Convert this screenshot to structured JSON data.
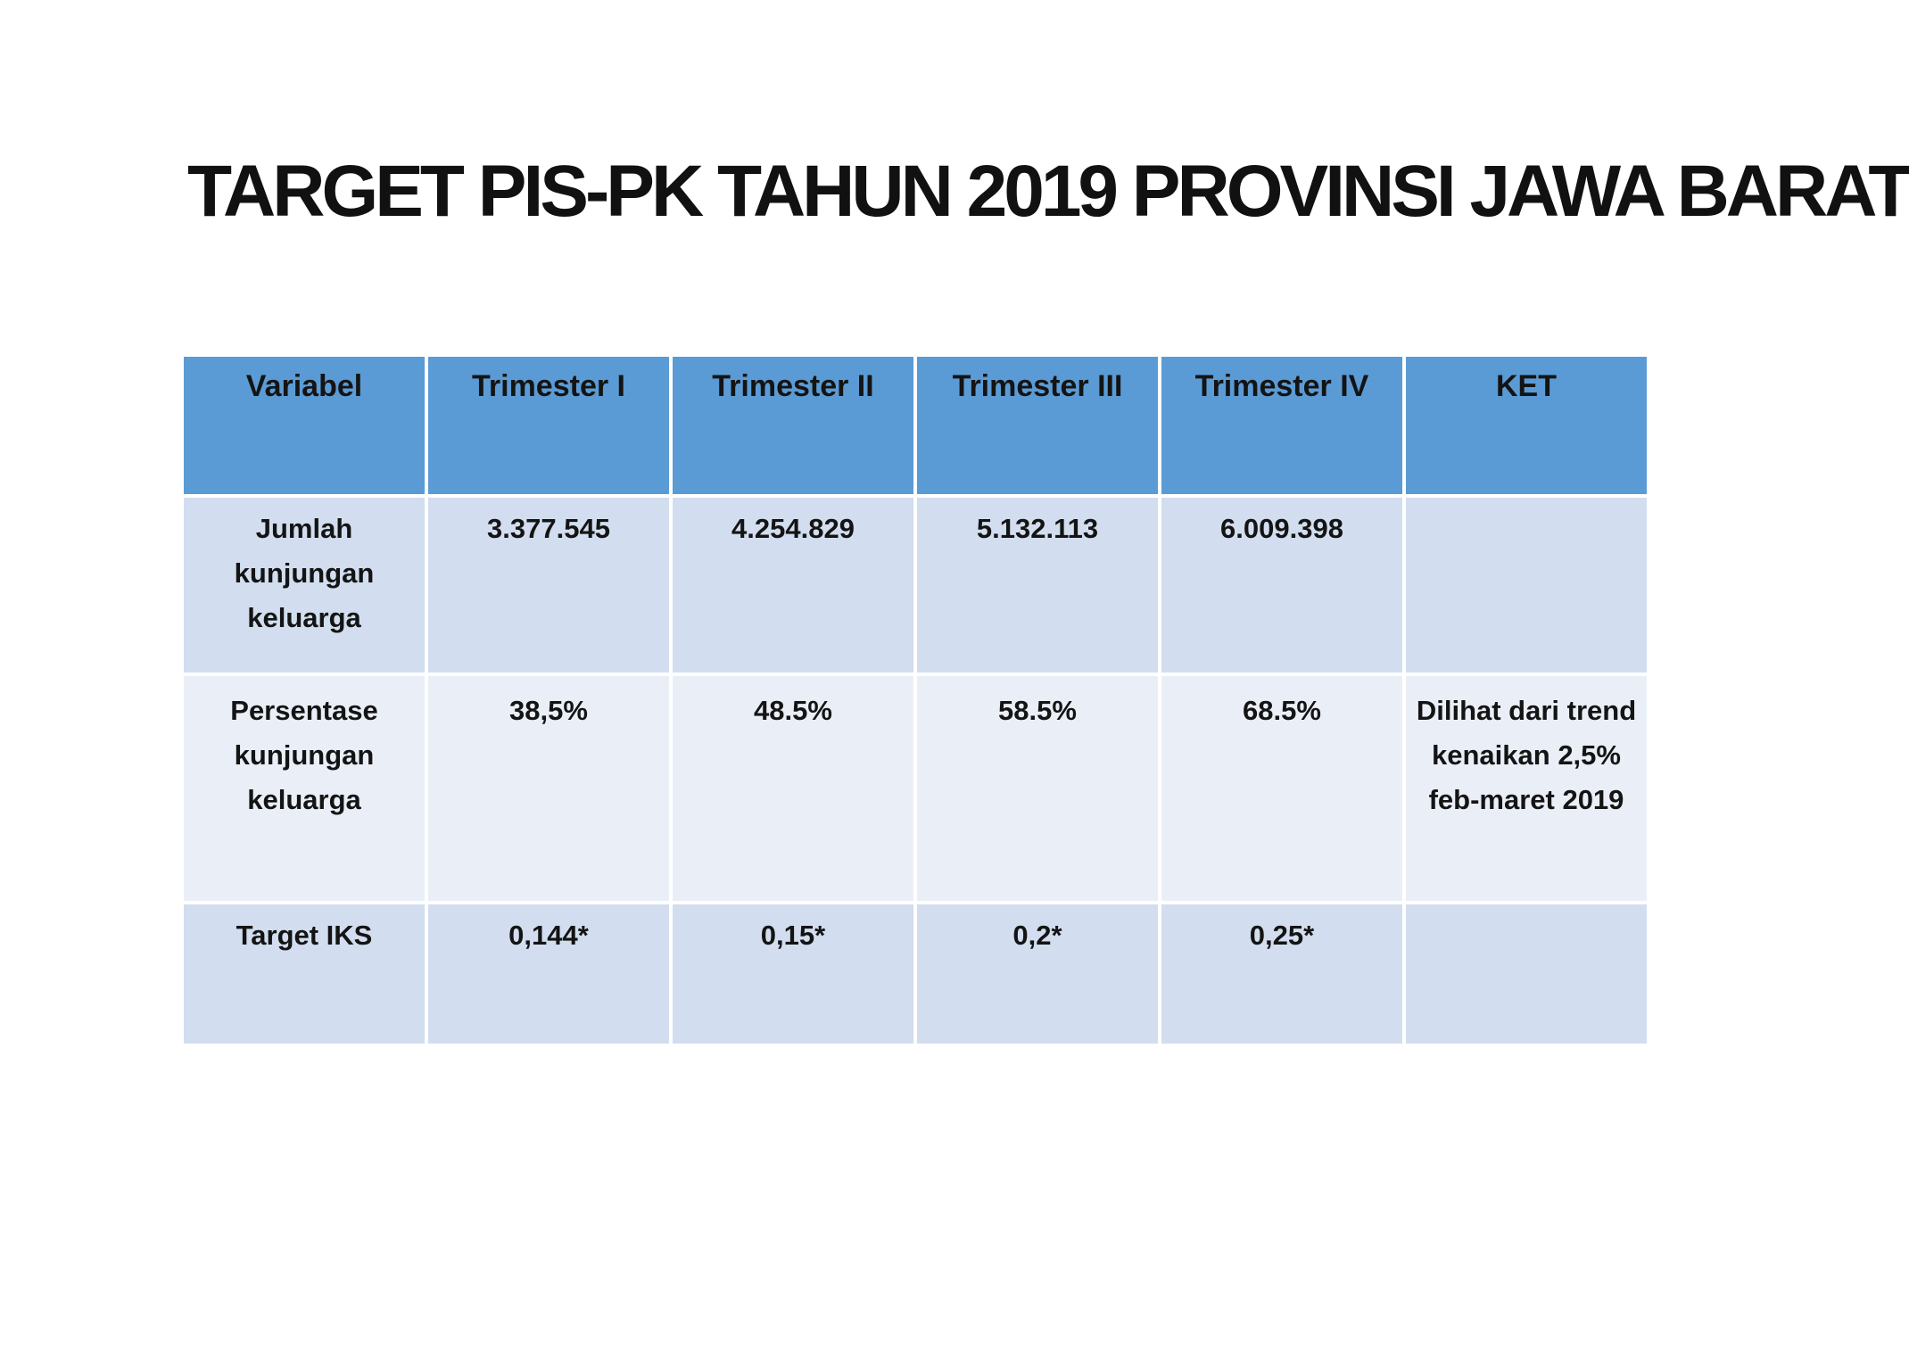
{
  "title": "TARGET PIS-PK TAHUN 2019 PROVINSI JAWA BARAT",
  "table": {
    "headers": [
      "Variabel",
      "Trimester I",
      "Trimester II",
      "Trimester III",
      "Trimester IV",
      "KET"
    ],
    "rows": [
      [
        "Jumlah kunjungan keluarga",
        "3.377.545",
        "4.254.829",
        "5.132.113",
        "6.009.398",
        ""
      ],
      [
        "Persentase kunjungan keluarga",
        "38,5%",
        "48.5%",
        "58.5%",
        "68.5%",
        "Dilihat dari trend kenaikan 2,5% feb-maret 2019"
      ],
      [
        "Target IKS",
        "0,144*",
        "0,15*",
        "0,2*",
        "0,25*",
        ""
      ]
    ]
  },
  "colors": {
    "header": "#5b9bd5",
    "row_dark": "#d2deef",
    "row_light": "#eaeff7"
  }
}
